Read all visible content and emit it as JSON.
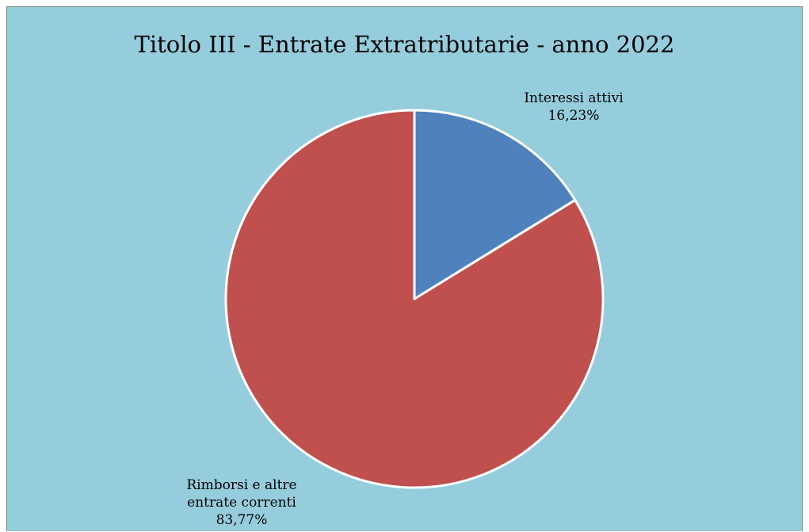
{
  "chart_data": {
    "type": "pie",
    "title": "Titolo III - Entrate Extratributarie - anno 2022",
    "slices": [
      {
        "label_lines": [
          "Interessi attivi"
        ],
        "value": 16.23,
        "value_label": "16,23%",
        "color": "#4f81bd"
      },
      {
        "label_lines": [
          "Rimborsi e altre",
          "entrate correnti"
        ],
        "value": 83.77,
        "value_label": "83,77%",
        "color": "#c0504d"
      }
    ],
    "start_angle": "12 o'clock",
    "direction": "clockwise",
    "slice_border_color": "#ffffff",
    "background_color": "#95cddd",
    "legend": "none"
  }
}
